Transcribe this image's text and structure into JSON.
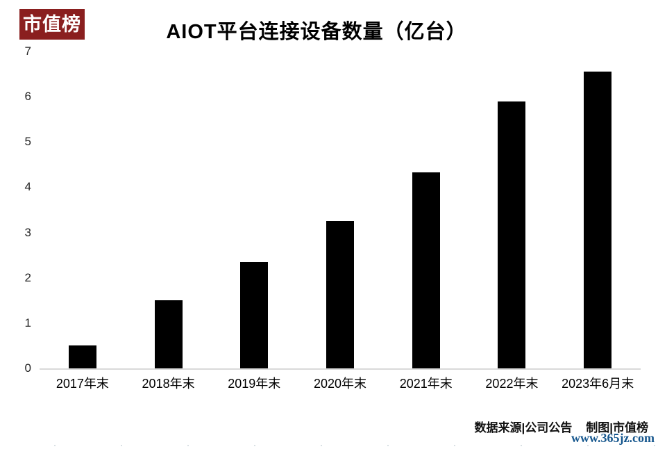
{
  "logo": {
    "text": "市值榜",
    "bg_color": "#8A1F1F",
    "text_color": "#FFFFFF"
  },
  "title": "AIOT平台连接设备数量（亿台）",
  "chart_data": {
    "type": "bar",
    "title": "AIOT平台连接设备数量（亿台）",
    "categories": [
      "2017年末",
      "2018年末",
      "2019年末",
      "2020年末",
      "2021年末",
      "2022年末",
      "2023年6月末"
    ],
    "values": [
      0.5,
      1.5,
      2.35,
      3.25,
      4.33,
      5.9,
      6.55
    ],
    "xlabel": "",
    "ylabel": "",
    "ylim": [
      0,
      7
    ],
    "yticks": [
      0,
      1,
      2,
      3,
      4,
      5,
      6,
      7
    ],
    "bar_color": "#000000",
    "axis_color": "#D9D9D9",
    "grid": false,
    "legend": null
  },
  "footer": {
    "source": "数据来源|公司公告",
    "credit": "制图|市值榜",
    "watermark": "www.365jz.com",
    "watermark_color": "#15568D"
  }
}
